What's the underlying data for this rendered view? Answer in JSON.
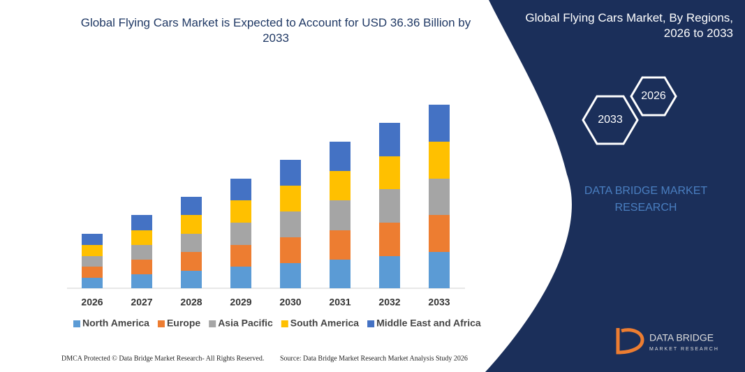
{
  "chart_data": {
    "type": "stacked_bar",
    "title": "Global Flying Cars Market is Expected to Account for USD 36.36 Billion by 2033",
    "categories": [
      "2026",
      "2027",
      "2028",
      "2029",
      "2030",
      "2031",
      "2032",
      "2033"
    ],
    "series": [
      {
        "name": "North America",
        "color": "#5b9bd5",
        "values": [
          15,
          20,
          25,
          31,
          36,
          41,
          46,
          52
        ]
      },
      {
        "name": "Europe",
        "color": "#ed7d31",
        "values": [
          16,
          21,
          27,
          31,
          37,
          42,
          48,
          53
        ]
      },
      {
        "name": "Asia Pacific",
        "color": "#a5a5a5",
        "values": [
          15,
          21,
          26,
          32,
          37,
          43,
          48,
          52
        ]
      },
      {
        "name": "South America",
        "color": "#ffc000",
        "values": [
          16,
          21,
          27,
          32,
          37,
          42,
          47,
          53
        ]
      },
      {
        "name": "Middle East and Africa",
        "color": "#4472c4",
        "values": [
          16,
          22,
          26,
          31,
          37,
          42,
          48,
          53
        ]
      }
    ],
    "legend": "bottom"
  },
  "panel": {
    "title": "Global Flying Cars Market, By Regions, 2026 to 2033",
    "hex_labels": [
      "2033",
      "2026"
    ],
    "brand": "DATA BRIDGE MARKET RESEARCH",
    "logo_name": "DATA BRIDGE",
    "logo_sub": "MARKET RESEARCH"
  },
  "footer": {
    "left": "DMCA Protected © Data Bridge Market Research- All Rights Reserved.",
    "right": "Source: Data Bridge Market Research Market Analysis Study 2026"
  }
}
